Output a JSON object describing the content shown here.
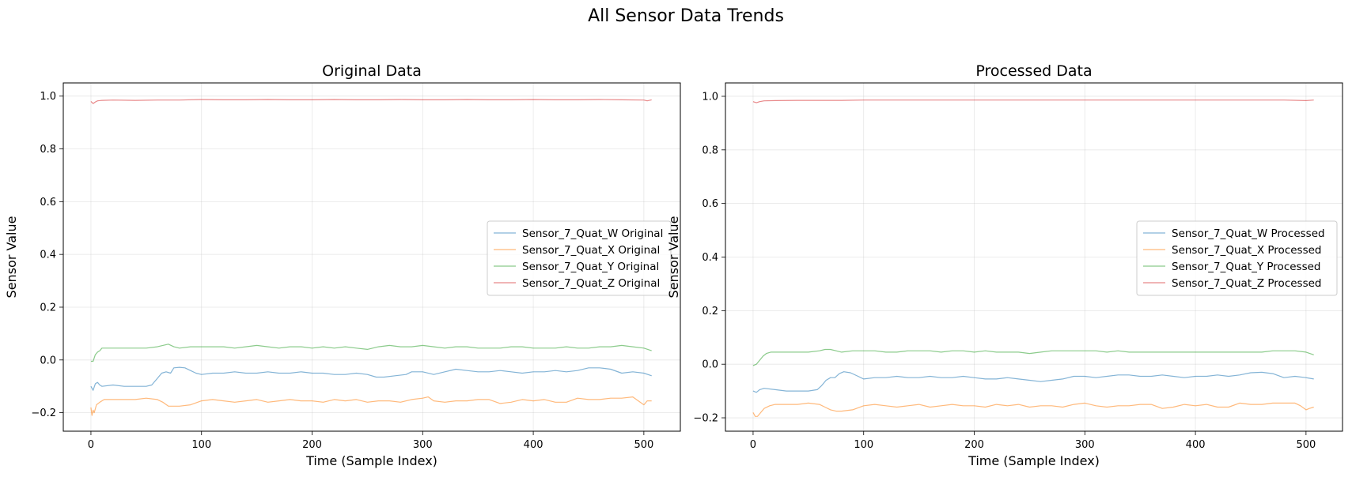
{
  "figure": {
    "suptitle": "All Sensor Data Trends"
  },
  "chart_data": [
    {
      "type": "line",
      "title": "Original Data",
      "xlabel": "Time (Sample Index)",
      "ylabel": "Sensor Value",
      "xlim": [
        -25,
        533
      ],
      "ylim": [
        -0.27,
        1.05
      ],
      "xticks": [
        0,
        100,
        200,
        300,
        400,
        500
      ],
      "yticks": [
        -0.2,
        0.0,
        0.2,
        0.4,
        0.6,
        0.8,
        1.0
      ],
      "ytick_labels": [
        "−0.2",
        "0.0",
        "0.2",
        "0.4",
        "0.6",
        "0.8",
        "1.0"
      ],
      "grid": true,
      "legend_position": "center-right",
      "series": [
        {
          "name": "Sensor_7_Quat_W Original",
          "color": "#1f77b4",
          "x": [
            0,
            2,
            4,
            6,
            8,
            10,
            20,
            30,
            40,
            50,
            55,
            60,
            64,
            68,
            72,
            75,
            80,
            85,
            90,
            95,
            100,
            110,
            120,
            130,
            140,
            150,
            160,
            170,
            180,
            190,
            200,
            210,
            220,
            230,
            240,
            250,
            258,
            265,
            275,
            285,
            290,
            300,
            310,
            320,
            330,
            340,
            350,
            360,
            370,
            380,
            390,
            400,
            410,
            420,
            430,
            440,
            450,
            460,
            470,
            480,
            490,
            500,
            507
          ],
          "values": [
            -0.1,
            -0.115,
            -0.09,
            -0.085,
            -0.095,
            -0.1,
            -0.095,
            -0.1,
            -0.1,
            -0.1,
            -0.095,
            -0.07,
            -0.05,
            -0.045,
            -0.05,
            -0.03,
            -0.028,
            -0.03,
            -0.04,
            -0.05,
            -0.055,
            -0.05,
            -0.05,
            -0.045,
            -0.05,
            -0.05,
            -0.045,
            -0.05,
            -0.05,
            -0.045,
            -0.05,
            -0.05,
            -0.055,
            -0.055,
            -0.05,
            -0.055,
            -0.065,
            -0.065,
            -0.06,
            -0.055,
            -0.045,
            -0.045,
            -0.055,
            -0.045,
            -0.035,
            -0.04,
            -0.045,
            -0.045,
            -0.04,
            -0.045,
            -0.05,
            -0.045,
            -0.045,
            -0.04,
            -0.045,
            -0.04,
            -0.03,
            -0.03,
            -0.035,
            -0.05,
            -0.045,
            -0.05,
            -0.06
          ]
        },
        {
          "name": "Sensor_7_Quat_X Original",
          "color": "#ff7f0e",
          "x": [
            0,
            1,
            2,
            3,
            5,
            8,
            12,
            20,
            30,
            40,
            50,
            60,
            65,
            70,
            75,
            80,
            90,
            100,
            110,
            120,
            130,
            140,
            150,
            160,
            170,
            180,
            190,
            200,
            210,
            220,
            230,
            240,
            250,
            260,
            270,
            280,
            290,
            300,
            305,
            310,
            320,
            330,
            340,
            350,
            360,
            370,
            380,
            390,
            400,
            410,
            420,
            430,
            440,
            450,
            460,
            470,
            480,
            490,
            495,
            500,
            503,
            507
          ],
          "values": [
            -0.18,
            -0.21,
            -0.19,
            -0.2,
            -0.17,
            -0.16,
            -0.15,
            -0.15,
            -0.15,
            -0.15,
            -0.145,
            -0.15,
            -0.16,
            -0.175,
            -0.175,
            -0.175,
            -0.17,
            -0.155,
            -0.15,
            -0.155,
            -0.16,
            -0.155,
            -0.15,
            -0.16,
            -0.155,
            -0.15,
            -0.155,
            -0.155,
            -0.16,
            -0.15,
            -0.155,
            -0.15,
            -0.16,
            -0.155,
            -0.155,
            -0.16,
            -0.15,
            -0.145,
            -0.14,
            -0.155,
            -0.16,
            -0.155,
            -0.155,
            -0.15,
            -0.15,
            -0.165,
            -0.16,
            -0.15,
            -0.155,
            -0.15,
            -0.16,
            -0.16,
            -0.145,
            -0.15,
            -0.15,
            -0.145,
            -0.145,
            -0.14,
            -0.155,
            -0.17,
            -0.155,
            -0.155
          ]
        },
        {
          "name": "Sensor_7_Quat_Y Original",
          "color": "#2ca02c",
          "x": [
            0,
            2,
            4,
            6,
            8,
            10,
            15,
            20,
            30,
            40,
            50,
            60,
            65,
            70,
            75,
            80,
            90,
            100,
            110,
            120,
            130,
            140,
            150,
            160,
            170,
            180,
            190,
            200,
            210,
            220,
            230,
            240,
            250,
            260,
            270,
            280,
            290,
            300,
            310,
            320,
            330,
            340,
            350,
            360,
            370,
            380,
            390,
            400,
            410,
            420,
            430,
            440,
            450,
            460,
            470,
            480,
            490,
            500,
            507
          ],
          "values": [
            -0.005,
            -0.005,
            0.02,
            0.03,
            0.035,
            0.045,
            0.045,
            0.045,
            0.045,
            0.045,
            0.045,
            0.05,
            0.055,
            0.06,
            0.05,
            0.045,
            0.05,
            0.05,
            0.05,
            0.05,
            0.045,
            0.05,
            0.055,
            0.05,
            0.045,
            0.05,
            0.05,
            0.045,
            0.05,
            0.045,
            0.05,
            0.045,
            0.04,
            0.05,
            0.055,
            0.05,
            0.05,
            0.055,
            0.05,
            0.045,
            0.05,
            0.05,
            0.045,
            0.045,
            0.045,
            0.05,
            0.05,
            0.045,
            0.045,
            0.045,
            0.05,
            0.045,
            0.045,
            0.05,
            0.05,
            0.055,
            0.05,
            0.045,
            0.035
          ]
        },
        {
          "name": "Sensor_7_Quat_Z Original",
          "color": "#d62728",
          "x": [
            0,
            2,
            4,
            6,
            10,
            20,
            40,
            60,
            80,
            100,
            120,
            140,
            160,
            180,
            200,
            220,
            240,
            260,
            280,
            300,
            320,
            340,
            360,
            380,
            400,
            420,
            440,
            460,
            480,
            500,
            503,
            507
          ],
          "values": [
            0.98,
            0.972,
            0.978,
            0.982,
            0.984,
            0.985,
            0.984,
            0.985,
            0.985,
            0.987,
            0.986,
            0.986,
            0.987,
            0.986,
            0.986,
            0.987,
            0.986,
            0.986,
            0.987,
            0.986,
            0.986,
            0.987,
            0.986,
            0.986,
            0.987,
            0.986,
            0.986,
            0.987,
            0.986,
            0.985,
            0.982,
            0.986
          ]
        }
      ]
    },
    {
      "type": "line",
      "title": "Processed Data",
      "xlabel": "Time (Sample Index)",
      "ylabel": "Sensor Value",
      "xlim": [
        -25,
        533
      ],
      "ylim": [
        -0.25,
        1.05
      ],
      "xticks": [
        0,
        100,
        200,
        300,
        400,
        500
      ],
      "yticks": [
        -0.2,
        0.0,
        0.2,
        0.4,
        0.6,
        0.8,
        1.0
      ],
      "ytick_labels": [
        "−0.2",
        "0.0",
        "0.2",
        "0.4",
        "0.6",
        "0.8",
        "1.0"
      ],
      "grid": true,
      "legend_position": "center-right",
      "series": [
        {
          "name": "Sensor_7_Quat_W Processed",
          "color": "#1f77b4",
          "x": [
            0,
            3,
            6,
            10,
            20,
            30,
            40,
            50,
            58,
            62,
            66,
            70,
            74,
            78,
            82,
            88,
            95,
            100,
            110,
            120,
            130,
            140,
            150,
            160,
            170,
            180,
            190,
            200,
            210,
            220,
            230,
            240,
            250,
            260,
            270,
            280,
            290,
            300,
            310,
            320,
            330,
            340,
            350,
            360,
            370,
            380,
            390,
            400,
            410,
            420,
            430,
            440,
            450,
            460,
            470,
            480,
            490,
            500,
            507
          ],
          "values": [
            -0.1,
            -0.105,
            -0.095,
            -0.09,
            -0.095,
            -0.1,
            -0.1,
            -0.1,
            -0.095,
            -0.08,
            -0.06,
            -0.05,
            -0.05,
            -0.035,
            -0.028,
            -0.032,
            -0.045,
            -0.055,
            -0.05,
            -0.05,
            -0.045,
            -0.05,
            -0.05,
            -0.045,
            -0.05,
            -0.05,
            -0.045,
            -0.05,
            -0.055,
            -0.055,
            -0.05,
            -0.055,
            -0.06,
            -0.065,
            -0.06,
            -0.055,
            -0.045,
            -0.045,
            -0.05,
            -0.045,
            -0.04,
            -0.04,
            -0.045,
            -0.045,
            -0.04,
            -0.045,
            -0.05,
            -0.045,
            -0.045,
            -0.04,
            -0.045,
            -0.04,
            -0.032,
            -0.03,
            -0.035,
            -0.05,
            -0.045,
            -0.05,
            -0.055
          ]
        },
        {
          "name": "Sensor_7_Quat_X Processed",
          "color": "#ff7f0e",
          "x": [
            0,
            2,
            4,
            7,
            10,
            15,
            20,
            30,
            40,
            50,
            60,
            65,
            70,
            75,
            80,
            90,
            100,
            110,
            120,
            130,
            140,
            150,
            160,
            170,
            180,
            190,
            200,
            210,
            220,
            230,
            240,
            250,
            260,
            270,
            280,
            290,
            300,
            310,
            320,
            330,
            340,
            350,
            360,
            370,
            380,
            390,
            400,
            410,
            420,
            430,
            440,
            450,
            460,
            470,
            480,
            490,
            495,
            500,
            503,
            507
          ],
          "values": [
            -0.18,
            -0.195,
            -0.195,
            -0.18,
            -0.165,
            -0.155,
            -0.15,
            -0.15,
            -0.15,
            -0.145,
            -0.15,
            -0.16,
            -0.17,
            -0.175,
            -0.175,
            -0.17,
            -0.155,
            -0.15,
            -0.155,
            -0.16,
            -0.155,
            -0.15,
            -0.16,
            -0.155,
            -0.15,
            -0.155,
            -0.155,
            -0.16,
            -0.15,
            -0.155,
            -0.15,
            -0.16,
            -0.155,
            -0.155,
            -0.16,
            -0.15,
            -0.145,
            -0.155,
            -0.16,
            -0.155,
            -0.155,
            -0.15,
            -0.15,
            -0.165,
            -0.16,
            -0.15,
            -0.155,
            -0.15,
            -0.16,
            -0.16,
            -0.145,
            -0.15,
            -0.15,
            -0.145,
            -0.145,
            -0.145,
            -0.155,
            -0.17,
            -0.165,
            -0.16
          ]
        },
        {
          "name": "Sensor_7_Quat_Y Processed",
          "color": "#2ca02c",
          "x": [
            0,
            3,
            6,
            9,
            12,
            16,
            20,
            30,
            40,
            50,
            60,
            65,
            70,
            75,
            80,
            90,
            100,
            110,
            120,
            130,
            140,
            150,
            160,
            170,
            180,
            190,
            200,
            210,
            220,
            230,
            240,
            250,
            260,
            270,
            280,
            290,
            300,
            310,
            320,
            330,
            340,
            350,
            360,
            370,
            380,
            390,
            400,
            410,
            420,
            430,
            440,
            450,
            460,
            470,
            480,
            490,
            500,
            507
          ],
          "values": [
            -0.005,
            0.0,
            0.015,
            0.03,
            0.04,
            0.045,
            0.045,
            0.045,
            0.045,
            0.045,
            0.05,
            0.055,
            0.055,
            0.05,
            0.045,
            0.05,
            0.05,
            0.05,
            0.045,
            0.045,
            0.05,
            0.05,
            0.05,
            0.045,
            0.05,
            0.05,
            0.045,
            0.05,
            0.045,
            0.045,
            0.045,
            0.04,
            0.045,
            0.05,
            0.05,
            0.05,
            0.05,
            0.05,
            0.045,
            0.05,
            0.045,
            0.045,
            0.045,
            0.045,
            0.045,
            0.045,
            0.045,
            0.045,
            0.045,
            0.045,
            0.045,
            0.045,
            0.045,
            0.05,
            0.05,
            0.05,
            0.045,
            0.035
          ]
        },
        {
          "name": "Sensor_7_Quat_Z Processed",
          "color": "#d62728",
          "x": [
            0,
            3,
            6,
            10,
            20,
            40,
            60,
            80,
            100,
            120,
            140,
            160,
            180,
            200,
            220,
            240,
            260,
            280,
            300,
            320,
            340,
            360,
            380,
            400,
            420,
            440,
            460,
            480,
            500,
            507
          ],
          "values": [
            0.98,
            0.976,
            0.98,
            0.983,
            0.984,
            0.985,
            0.985,
            0.985,
            0.986,
            0.986,
            0.986,
            0.986,
            0.986,
            0.986,
            0.986,
            0.986,
            0.986,
            0.986,
            0.986,
            0.986,
            0.986,
            0.986,
            0.986,
            0.986,
            0.986,
            0.986,
            0.986,
            0.986,
            0.984,
            0.986
          ]
        }
      ]
    }
  ]
}
